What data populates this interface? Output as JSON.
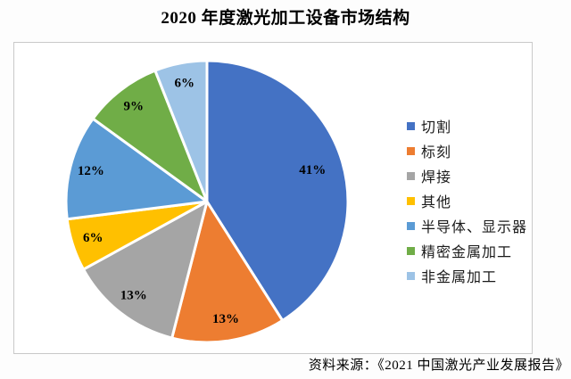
{
  "page": {
    "title": "2020 年度激光加工设备市场结构",
    "source": "资料来源：《2021 中国激光产业发展报告》"
  },
  "chart_data": {
    "type": "pie",
    "title": "2020 年度激光加工设备市场结构",
    "unit": "%",
    "direction": "clockwise",
    "start_angle_deg": 0,
    "legend_position": "right",
    "data_labels": "percent-inside",
    "slice_border_color": "#ffffff",
    "series": [
      {
        "name": "切割",
        "value": 41,
        "label": "41%",
        "color": "#4472C4"
      },
      {
        "name": "标刻",
        "value": 13,
        "label": "13%",
        "color": "#ED7D31"
      },
      {
        "name": "焊接",
        "value": 13,
        "label": "13%",
        "color": "#A5A5A5"
      },
      {
        "name": "其他",
        "value": 6,
        "label": "6%",
        "color": "#FFC000"
      },
      {
        "name": "半导体、显示器",
        "value": 12,
        "label": "12%",
        "color": "#5B9BD5"
      },
      {
        "name": "精密金属加工",
        "value": 9,
        "label": "9%",
        "color": "#70AD47"
      },
      {
        "name": "非金属加工",
        "value": 6,
        "label": "6%",
        "color": "#9DC3E6"
      }
    ]
  }
}
